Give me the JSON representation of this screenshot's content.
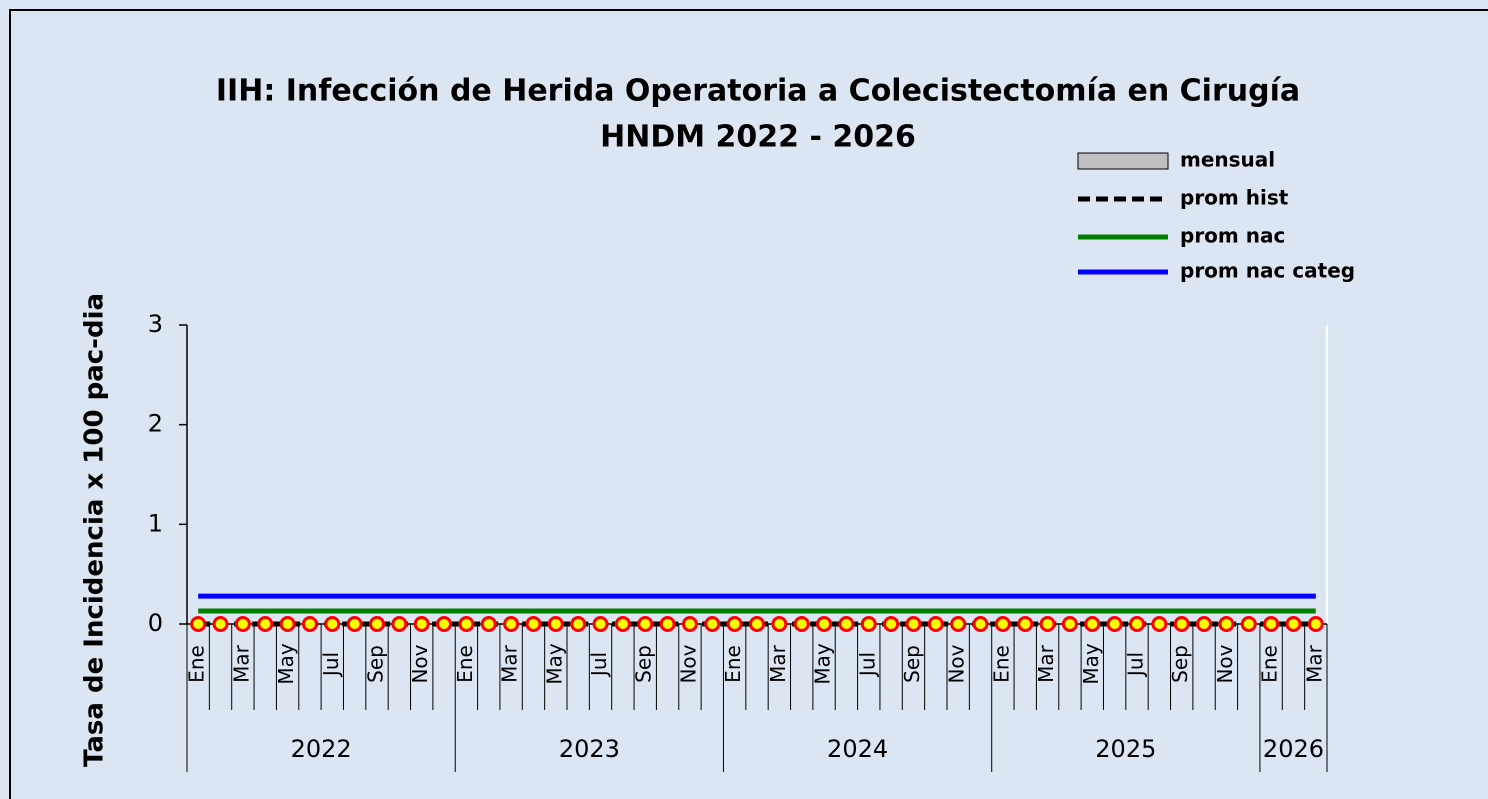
{
  "chart_data": {
    "type": "line",
    "title": "IIH: Infección de Herida Operatoria a Colecistectomía en Cirugía",
    "subtitle": "HNDM 2022 - 2026",
    "y_label": "Tasa de Incidencia x 100 pac-dia",
    "categories": [
      "Ene",
      null,
      "Mar",
      null,
      "May",
      null,
      "Jul",
      null,
      "Sep",
      null,
      "Nov",
      null,
      "Ene",
      null,
      "Mar",
      null,
      "May",
      null,
      "Jul",
      null,
      "Sep",
      null,
      "Nov",
      null,
      "Ene",
      null,
      "Mar",
      null,
      "May",
      null,
      "Jul",
      null,
      "Sep",
      null,
      "Nov",
      null,
      "Ene",
      null,
      "Mar",
      null,
      "May",
      null,
      "Jul",
      null,
      "Sep",
      null,
      "Nov",
      null,
      "Ene",
      null,
      "Mar"
    ],
    "years": [
      "2022",
      "2023",
      "2024",
      "2025",
      "2026"
    ],
    "ylim": [
      0,
      3
    ],
    "yticks": [
      0,
      1,
      2,
      3
    ],
    "series": [
      {
        "name": "mensual",
        "color": "#c0c0c0",
        "marker_fill": "#ffff00",
        "marker_edge": "#ff0000",
        "values": [
          0,
          0,
          0,
          0,
          0,
          0,
          0,
          0,
          0,
          0,
          0,
          0,
          0,
          0,
          0,
          0,
          0,
          0,
          0,
          0,
          0,
          0,
          0,
          0,
          0,
          0,
          0,
          0,
          0,
          0,
          0,
          0,
          0,
          0,
          0,
          0,
          0,
          0,
          0,
          0,
          0,
          0,
          0,
          0,
          0,
          0,
          0,
          0,
          0,
          0,
          0
        ]
      },
      {
        "name": "prom hist",
        "color": "#000000",
        "dashed": true,
        "values": [
          0,
          0,
          0,
          0,
          0,
          0,
          0,
          0,
          0,
          0,
          0,
          0,
          0,
          0,
          0,
          0,
          0,
          0,
          0,
          0,
          0,
          0,
          0,
          0,
          0,
          0,
          0,
          0,
          0,
          0,
          0,
          0,
          0,
          0,
          0,
          0,
          0,
          0,
          0,
          0,
          0,
          0,
          0,
          0,
          0,
          0,
          0,
          0,
          0,
          0,
          0
        ]
      },
      {
        "name": "prom nac",
        "color": "#008000",
        "values": [
          0.13,
          0.13,
          0.13,
          0.13,
          0.13,
          0.13,
          0.13,
          0.13,
          0.13,
          0.13,
          0.13,
          0.13,
          0.13,
          0.13,
          0.13,
          0.13,
          0.13,
          0.13,
          0.13,
          0.13,
          0.13,
          0.13,
          0.13,
          0.13,
          0.13,
          0.13,
          0.13,
          0.13,
          0.13,
          0.13,
          0.13,
          0.13,
          0.13,
          0.13,
          0.13,
          0.13,
          0.13,
          0.13,
          0.13,
          0.13,
          0.13,
          0.13,
          0.13,
          0.13,
          0.13,
          0.13,
          0.13,
          0.13,
          0.13,
          0.13,
          0.13
        ]
      },
      {
        "name": "prom nac categ",
        "color": "#0000ff",
        "values": [
          0.28,
          0.28,
          0.28,
          0.28,
          0.28,
          0.28,
          0.28,
          0.28,
          0.28,
          0.28,
          0.28,
          0.28,
          0.28,
          0.28,
          0.28,
          0.28,
          0.28,
          0.28,
          0.28,
          0.28,
          0.28,
          0.28,
          0.28,
          0.28,
          0.28,
          0.28,
          0.28,
          0.28,
          0.28,
          0.28,
          0.28,
          0.28,
          0.28,
          0.28,
          0.28,
          0.28,
          0.28,
          0.28,
          0.28,
          0.28,
          0.28,
          0.28,
          0.28,
          0.28,
          0.28,
          0.28,
          0.28,
          0.28,
          0.28,
          0.28,
          0.28
        ]
      }
    ]
  }
}
